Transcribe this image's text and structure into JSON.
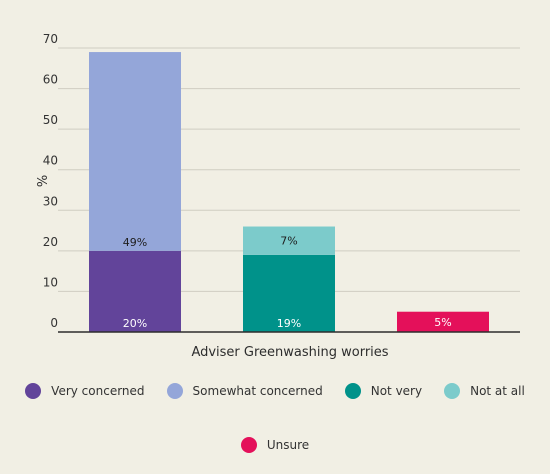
{
  "chart_data": {
    "type": "bar",
    "stacked": true,
    "xlabel": "Adviser Greenwashing worries",
    "ylabel": "%",
    "ylim": [
      0,
      70
    ],
    "yticks": [
      0,
      10,
      20,
      30,
      40,
      50,
      60,
      70
    ],
    "grid": true,
    "legend_position": "bottom",
    "bars": [
      {
        "segments": [
          {
            "series": "Very concerned",
            "value": 20,
            "label": "20%"
          },
          {
            "series": "Somewhat concerned",
            "value": 49,
            "label": "49%"
          }
        ]
      },
      {
        "segments": [
          {
            "series": "Not very",
            "value": 19,
            "label": "19%"
          },
          {
            "series": "Not at all",
            "value": 7,
            "label": "7%"
          }
        ]
      },
      {
        "segments": [
          {
            "series": "Unsure",
            "value": 5,
            "label": "5%"
          }
        ]
      }
    ],
    "legend": [
      {
        "name": "Very concerned",
        "color": "#62449a"
      },
      {
        "name": "Somewhat concerned",
        "color": "#94a6d9"
      },
      {
        "name": "Not very",
        "color": "#00928a"
      },
      {
        "name": "Not at all",
        "color": "#7ccbcb"
      },
      {
        "name": "Unsure",
        "color": "#e4105a"
      }
    ]
  }
}
